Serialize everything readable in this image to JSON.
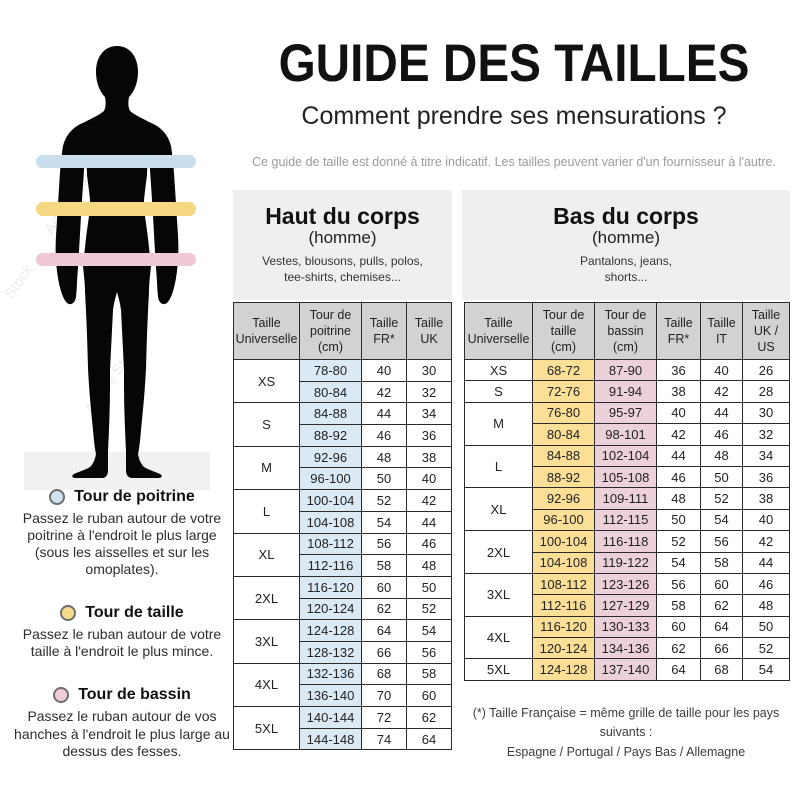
{
  "header": {
    "title": "GUIDE DES TAILLES",
    "subtitle": "Comment prendre ses mensurations ?",
    "disclaimer": "Ce guide de taille est donné à titre indicatif. Les tailles peuvent varier d'un fournisseur à l'autre."
  },
  "colors": {
    "chest_cell": "#dbe9f4",
    "waist_cell": "#fbdf96",
    "hips_cell": "#ecd0da",
    "chest_band": "#c9dfee",
    "waist_band": "#f6d782",
    "hips_band": "#f0c8d3",
    "header_cell": "#d2d2d2",
    "panel_bg": "#efefef"
  },
  "watermark": "Adobe Stock",
  "upper_table": {
    "title": "Haut du corps",
    "subtitle": "(homme)",
    "description": "Vestes, blousons, pulls, polos,\ntee-shirts, chemises...",
    "columns": [
      "Taille\nUniverselle",
      "Tour de\npoitrine\n(cm)",
      "Taille\nFR*",
      "Taille\nUK"
    ],
    "highlight": {
      "0": "chest_cell"
    },
    "groups": [
      {
        "size": "XS",
        "rows": [
          [
            "78-80",
            "40",
            "30"
          ],
          [
            "80-84",
            "42",
            "32"
          ]
        ]
      },
      {
        "size": "S",
        "rows": [
          [
            "84-88",
            "44",
            "34"
          ],
          [
            "88-92",
            "46",
            "36"
          ]
        ]
      },
      {
        "size": "M",
        "rows": [
          [
            "92-96",
            "48",
            "38"
          ],
          [
            "96-100",
            "50",
            "40"
          ]
        ]
      },
      {
        "size": "L",
        "rows": [
          [
            "100-104",
            "52",
            "42"
          ],
          [
            "104-108",
            "54",
            "44"
          ]
        ]
      },
      {
        "size": "XL",
        "rows": [
          [
            "108-112",
            "56",
            "46"
          ],
          [
            "112-116",
            "58",
            "48"
          ]
        ]
      },
      {
        "size": "2XL",
        "rows": [
          [
            "116-120",
            "60",
            "50"
          ],
          [
            "120-124",
            "62",
            "52"
          ]
        ]
      },
      {
        "size": "3XL",
        "rows": [
          [
            "124-128",
            "64",
            "54"
          ],
          [
            "128-132",
            "66",
            "56"
          ]
        ]
      },
      {
        "size": "4XL",
        "rows": [
          [
            "132-136",
            "68",
            "58"
          ],
          [
            "136-140",
            "70",
            "60"
          ]
        ]
      },
      {
        "size": "5XL",
        "rows": [
          [
            "140-144",
            "72",
            "62"
          ],
          [
            "144-148",
            "74",
            "64"
          ]
        ]
      }
    ]
  },
  "lower_table": {
    "title": "Bas du corps",
    "subtitle": "(homme)",
    "description": "Pantalons, jeans,\nshorts...",
    "columns": [
      "Taille\nUniverselle",
      "Tour de\ntaille\n(cm)",
      "Tour de\nbassin\n(cm)",
      "Taille\nFR*",
      "Taille\nIT",
      "Taille\nUK /\nUS"
    ],
    "highlight": {
      "0": "waist_cell",
      "1": "hips_cell"
    },
    "groups": [
      {
        "size": "XS",
        "rows": [
          [
            "68-72",
            "87-90",
            "36",
            "40",
            "26"
          ]
        ]
      },
      {
        "size": "S",
        "rows": [
          [
            "72-76",
            "91-94",
            "38",
            "42",
            "28"
          ]
        ]
      },
      {
        "size": "M",
        "rows": [
          [
            "76-80",
            "95-97",
            "40",
            "44",
            "30"
          ],
          [
            "80-84",
            "98-101",
            "42",
            "46",
            "32"
          ]
        ]
      },
      {
        "size": "L",
        "rows": [
          [
            "84-88",
            "102-104",
            "44",
            "48",
            "34"
          ],
          [
            "88-92",
            "105-108",
            "46",
            "50",
            "36"
          ]
        ]
      },
      {
        "size": "XL",
        "rows": [
          [
            "92-96",
            "109-111",
            "48",
            "52",
            "38"
          ],
          [
            "96-100",
            "112-115",
            "50",
            "54",
            "40"
          ]
        ]
      },
      {
        "size": "2XL",
        "rows": [
          [
            "100-104",
            "116-118",
            "52",
            "56",
            "42"
          ],
          [
            "104-108",
            "119-122",
            "54",
            "58",
            "44"
          ]
        ]
      },
      {
        "size": "3XL",
        "rows": [
          [
            "108-112",
            "123-126",
            "56",
            "60",
            "46"
          ],
          [
            "112-116",
            "127-129",
            "58",
            "62",
            "48"
          ]
        ]
      },
      {
        "size": "4XL",
        "rows": [
          [
            "116-120",
            "130-133",
            "60",
            "64",
            "50"
          ],
          [
            "120-124",
            "134-136",
            "62",
            "66",
            "52"
          ]
        ]
      },
      {
        "size": "5XL",
        "rows": [
          [
            "124-128",
            "137-140",
            "64",
            "68",
            "54"
          ]
        ]
      }
    ]
  },
  "legend": [
    {
      "name": "Tour de poitrine",
      "color": "#cfe2f0",
      "text": "Passez le ruban autour de votre poitrine à l'endroit le plus large (sous les aisselles et sur les omoplates)."
    },
    {
      "name": "Tour de taille",
      "color": "#f7dc8e",
      "text": "Passez le ruban autour de votre taille à l'endroit le plus mince."
    },
    {
      "name": "Tour de bassin",
      "color": "#f0ccd8",
      "text": "Passez le ruban autour de vos hanches à l'endroit le plus large au dessus des fesses."
    }
  ],
  "footnote": {
    "line1": "(*) Taille Française = même grille de taille pour les pays suivants :",
    "line2": "Espagne / Portugal / Pays Bas / Allemagne"
  }
}
